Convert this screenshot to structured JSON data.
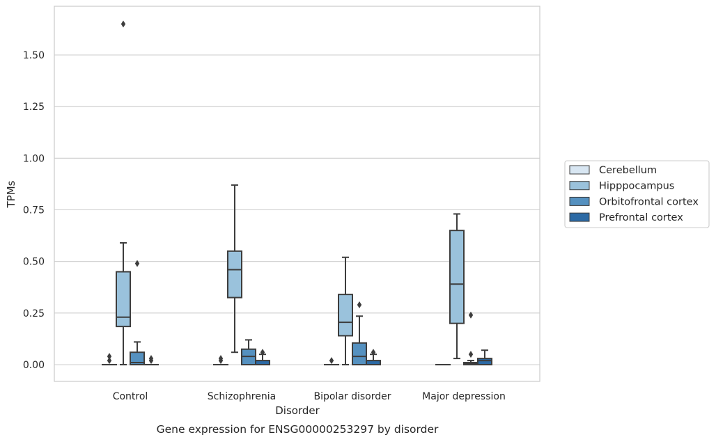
{
  "chart_data": {
    "type": "box",
    "title": "",
    "caption": "Gene expression for ENSG00000253297 by disorder",
    "xlabel": "Disorder",
    "ylabel": "TPMs",
    "ylim": [
      -0.08,
      1.74
    ],
    "yticks": [
      "0.00",
      "0.25",
      "0.50",
      "0.75",
      "1.00",
      "1.25",
      "1.50"
    ],
    "yticks_values": [
      0.0,
      0.25,
      0.5,
      0.75,
      1.0,
      1.25,
      1.5
    ],
    "grid": "horizontal",
    "legend_position": "right",
    "categories": [
      "Control",
      "Schizophrenia",
      "Bipolar disorder",
      "Major depression"
    ],
    "series": [
      {
        "name": "Cerebellum",
        "color": "#d8e6f2",
        "boxes": [
          {
            "q1": 0.0,
            "median": 0.0,
            "q3": 0.0,
            "whislo": 0.0,
            "whishi": 0.0,
            "fliers": [
              0.02,
              0.04
            ]
          },
          {
            "q1": 0.0,
            "median": 0.0,
            "q3": 0.0,
            "whislo": 0.0,
            "whishi": 0.0,
            "fliers": [
              0.02,
              0.03
            ]
          },
          {
            "q1": 0.0,
            "median": 0.0,
            "q3": 0.0,
            "whislo": 0.0,
            "whishi": 0.0,
            "fliers": [
              0.02
            ]
          },
          {
            "q1": 0.0,
            "median": 0.0,
            "q3": 0.0,
            "whislo": 0.0,
            "whishi": 0.0,
            "fliers": []
          }
        ]
      },
      {
        "name": "Hipppocampus",
        "color": "#9ac2dc",
        "boxes": [
          {
            "q1": 0.185,
            "median": 0.23,
            "q3": 0.45,
            "whislo": 0.0,
            "whishi": 0.59,
            "fliers": [
              1.65
            ]
          },
          {
            "q1": 0.325,
            "median": 0.46,
            "q3": 0.55,
            "whislo": 0.06,
            "whishi": 0.87,
            "fliers": []
          },
          {
            "q1": 0.14,
            "median": 0.205,
            "q3": 0.34,
            "whislo": 0.0,
            "whishi": 0.52,
            "fliers": []
          },
          {
            "q1": 0.2,
            "median": 0.39,
            "q3": 0.65,
            "whislo": 0.03,
            "whishi": 0.73,
            "fliers": []
          }
        ]
      },
      {
        "name": "Orbitofrontal cortex",
        "color": "#5591c0",
        "boxes": [
          {
            "q1": 0.0,
            "median": 0.01,
            "q3": 0.06,
            "whislo": 0.0,
            "whishi": 0.11,
            "fliers": [
              0.49
            ]
          },
          {
            "q1": 0.0,
            "median": 0.04,
            "q3": 0.075,
            "whislo": 0.0,
            "whishi": 0.12,
            "fliers": []
          },
          {
            "q1": 0.0,
            "median": 0.04,
            "q3": 0.105,
            "whislo": 0.0,
            "whishi": 0.235,
            "fliers": [
              0.29
            ]
          },
          {
            "q1": 0.0,
            "median": 0.005,
            "q3": 0.01,
            "whislo": 0.0,
            "whishi": 0.02,
            "fliers": [
              0.05,
              0.24
            ]
          }
        ]
      },
      {
        "name": "Prefrontal cortex",
        "color": "#2c6aa5",
        "boxes": [
          {
            "q1": 0.0,
            "median": 0.0,
            "q3": 0.0,
            "whislo": 0.0,
            "whishi": 0.0,
            "fliers": [
              0.02,
              0.03
            ]
          },
          {
            "q1": 0.0,
            "median": 0.0,
            "q3": 0.02,
            "whislo": 0.0,
            "whishi": 0.05,
            "fliers": [
              0.06
            ]
          },
          {
            "q1": 0.0,
            "median": 0.0,
            "q3": 0.02,
            "whislo": 0.0,
            "whishi": 0.05,
            "fliers": [
              0.06
            ]
          },
          {
            "q1": 0.0,
            "median": 0.02,
            "q3": 0.03,
            "whislo": 0.0,
            "whishi": 0.07,
            "fliers": []
          }
        ]
      }
    ]
  }
}
